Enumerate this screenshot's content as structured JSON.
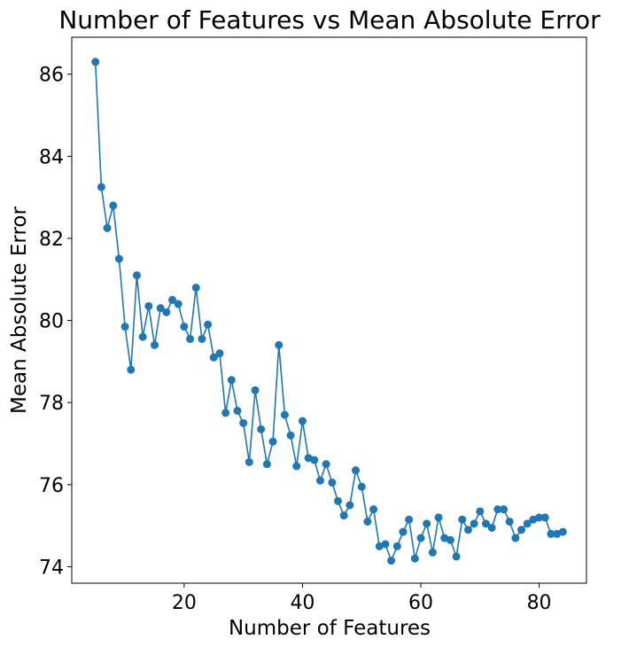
{
  "chart_data": {
    "type": "line",
    "title": "Number of Features vs Mean Absolute Error",
    "xlabel": "Number of Features",
    "ylabel": "Mean Absolute Error",
    "xlim": [
      1,
      88
    ],
    "ylim": [
      73.6,
      86.9
    ],
    "xticks": [
      20,
      40,
      60,
      80
    ],
    "yticks": [
      74,
      76,
      78,
      80,
      82,
      84,
      86
    ],
    "grid": false,
    "color": "#1f77b4",
    "series": [
      {
        "x": [
          5,
          6,
          7,
          8,
          9,
          10,
          11,
          12,
          13,
          14,
          15,
          16,
          17,
          18,
          19,
          20,
          21,
          22,
          23,
          24,
          25,
          26,
          27,
          28,
          29,
          30,
          31,
          32,
          33,
          34,
          35,
          36,
          37,
          38,
          39,
          40,
          41,
          42,
          43,
          44,
          45,
          46,
          47,
          48,
          49,
          50,
          51,
          52,
          53,
          54,
          55,
          56,
          57,
          58,
          59,
          60,
          61,
          62,
          63,
          64,
          65,
          66,
          67,
          68,
          69,
          70,
          71,
          72,
          73,
          74,
          75,
          76,
          77,
          78,
          79,
          80,
          81,
          82,
          83,
          84
        ],
        "values": [
          86.3,
          83.25,
          82.25,
          82.8,
          81.5,
          79.85,
          78.8,
          81.1,
          79.6,
          80.35,
          79.4,
          80.3,
          80.2,
          80.5,
          80.4,
          79.85,
          79.55,
          80.8,
          79.55,
          79.9,
          79.1,
          79.2,
          77.75,
          78.55,
          77.8,
          77.5,
          76.55,
          78.3,
          77.35,
          76.5,
          77.05,
          79.4,
          77.7,
          77.2,
          76.45,
          77.55,
          76.65,
          76.6,
          76.1,
          76.5,
          76.05,
          75.6,
          75.25,
          75.5,
          76.35,
          75.95,
          75.1,
          75.4,
          74.5,
          74.55,
          74.15,
          74.5,
          74.85,
          75.15,
          74.2,
          74.7,
          75.05,
          74.35,
          75.2,
          74.7,
          74.65,
          74.25,
          75.15,
          74.9,
          75.05,
          75.35,
          75.05,
          74.95,
          75.4,
          75.4,
          75.1,
          74.7,
          74.9,
          75.05,
          75.15,
          75.2,
          75.2,
          74.8,
          74.8,
          74.85
        ]
      }
    ]
  }
}
